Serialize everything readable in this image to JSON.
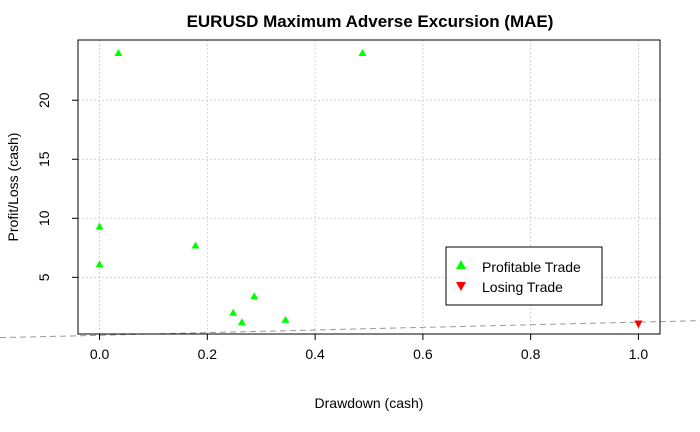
{
  "chart_data": {
    "type": "scatter",
    "title": "EURUSD Maximum Adverse Excursion (MAE)",
    "xlabel": "Drawdown (cash)",
    "ylabel": "Profit/Loss (cash)",
    "xlim": [
      -0.04,
      1.04
    ],
    "ylim": [
      0.2,
      25.1
    ],
    "xticks": [
      "0.0",
      "0.2",
      "0.4",
      "0.6",
      "0.8",
      "1.0"
    ],
    "yticks": [
      "5",
      "10",
      "15",
      "20"
    ],
    "grid": true,
    "legend_position": "right",
    "series": [
      {
        "name": "Profitable Trade",
        "marker": "triangle-up",
        "color": "#00ff00",
        "points": [
          {
            "x": 0.0,
            "y": 9.3
          },
          {
            "x": 0.0,
            "y": 6.1
          },
          {
            "x": 0.035,
            "y": 24.0
          },
          {
            "x": 0.178,
            "y": 7.7
          },
          {
            "x": 0.248,
            "y": 2.0
          },
          {
            "x": 0.264,
            "y": 1.2
          },
          {
            "x": 0.287,
            "y": 3.4
          },
          {
            "x": 0.345,
            "y": 1.4
          },
          {
            "x": 0.488,
            "y": 24.0
          }
        ]
      },
      {
        "name": "Losing Trade",
        "marker": "triangle-down",
        "color": "#ff0000",
        "points": [
          {
            "x": 1.0,
            "y": 1.0
          }
        ]
      }
    ],
    "reference_line": {
      "style": "dashed",
      "color": "#999999",
      "y_at_xmin": 0.05,
      "y_at_xmax": 1.25
    }
  }
}
